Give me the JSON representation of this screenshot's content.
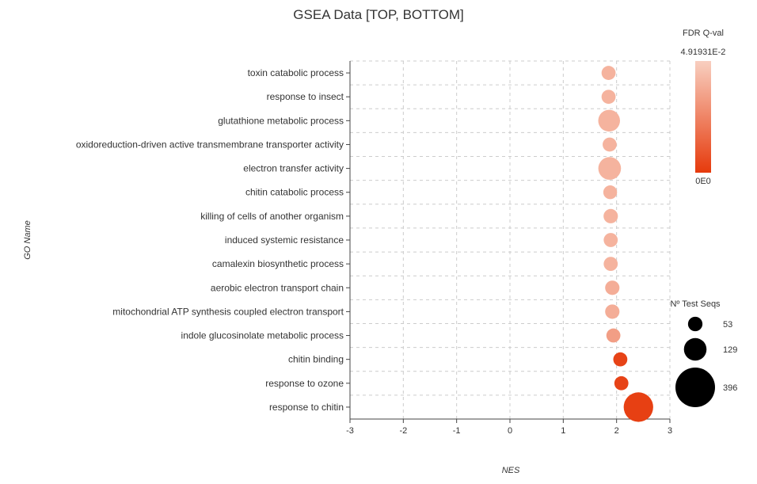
{
  "chart_data": {
    "type": "scatter",
    "title": "GSEA Data [TOP, BOTTOM]",
    "xlabel": "NES",
    "ylabel": "GO Name",
    "xlim": [
      -3,
      3
    ],
    "x_ticks": [
      "-3",
      "-2",
      "-1",
      "0",
      "1",
      "2",
      "3"
    ],
    "grid": true,
    "categories": [
      "toxin catabolic process",
      "response to insect",
      "glutathione metabolic process",
      "oxidoreduction-driven active transmembrane transporter activity",
      "electron transfer activity",
      "chitin catabolic process",
      "killing of cells of another organism",
      "induced systemic resistance",
      "camalexin biosynthetic process",
      "aerobic electron transport chain",
      "mitochondrial ATP synthesis coupled electron transport",
      "indole glucosinolate metabolic process",
      "chitin binding",
      "response to ozone",
      "response to chitin"
    ],
    "points": [
      {
        "go_name": "toxin catabolic process",
        "nes": 1.85,
        "fdr": 0.04,
        "test_seqs": 50
      },
      {
        "go_name": "response to insect",
        "nes": 1.85,
        "fdr": 0.04,
        "test_seqs": 50
      },
      {
        "go_name": "glutathione metabolic process",
        "nes": 1.86,
        "fdr": 0.04,
        "test_seqs": 120
      },
      {
        "go_name": "oxidoreduction-driven active transmembrane transporter activity",
        "nes": 1.87,
        "fdr": 0.04,
        "test_seqs": 50
      },
      {
        "go_name": "electron transfer activity",
        "nes": 1.87,
        "fdr": 0.04,
        "test_seqs": 130
      },
      {
        "go_name": "chitin catabolic process",
        "nes": 1.88,
        "fdr": 0.04,
        "test_seqs": 48
      },
      {
        "go_name": "killing of cells of another organism",
        "nes": 1.89,
        "fdr": 0.04,
        "test_seqs": 52
      },
      {
        "go_name": "induced systemic resistance",
        "nes": 1.89,
        "fdr": 0.04,
        "test_seqs": 50
      },
      {
        "go_name": "camalexin biosynthetic process",
        "nes": 1.89,
        "fdr": 0.04,
        "test_seqs": 50
      },
      {
        "go_name": "aerobic electron transport chain",
        "nes": 1.92,
        "fdr": 0.038,
        "test_seqs": 52
      },
      {
        "go_name": "mitochondrial ATP synthesis coupled electron transport",
        "nes": 1.92,
        "fdr": 0.038,
        "test_seqs": 52
      },
      {
        "go_name": "indole glucosinolate metabolic process",
        "nes": 1.94,
        "fdr": 0.033,
        "test_seqs": 50
      },
      {
        "go_name": "chitin binding",
        "nes": 2.07,
        "fdr": 0.003,
        "test_seqs": 50
      },
      {
        "go_name": "response to ozone",
        "nes": 2.09,
        "fdr": 0.003,
        "test_seqs": 50
      },
      {
        "go_name": "response to chitin",
        "nes": 2.41,
        "fdr": 0.002,
        "test_seqs": 220
      }
    ],
    "color_legend": {
      "title": "FDR Q-val",
      "max_label": "4.91931E-2",
      "min_label": "0E0",
      "max_value": 0.0491931,
      "min_value": 0,
      "color_high": "#f8cfc0",
      "color_low": "#e63a0c"
    },
    "size_legend": {
      "title": "Nº Test Seqs",
      "entries": [
        {
          "label": "53",
          "value": 53
        },
        {
          "label": "129",
          "value": 129
        },
        {
          "label": "396",
          "value": 396
        }
      ],
      "color": "#000000"
    }
  }
}
